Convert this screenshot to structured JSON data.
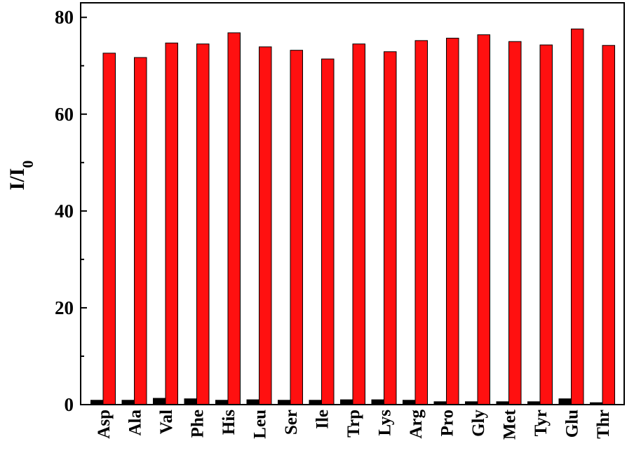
{
  "chart_data": {
    "type": "bar",
    "title": "",
    "xlabel": "",
    "ylabel": {
      "main": "I/I",
      "subscript": "0"
    },
    "ylim": [
      0,
      83
    ],
    "yticks": [
      0,
      20,
      40,
      60,
      80
    ],
    "categories": [
      "Asp",
      "Ala",
      "Val",
      "Phe",
      "His",
      "Leu",
      "Ser",
      "Ile",
      "Trp",
      "Lys",
      "Arg",
      "Pro",
      "Gly",
      "Met",
      "Tyr",
      "Glu",
      "Thr"
    ],
    "series": [
      {
        "color": "#000000",
        "values": [
          0.9,
          0.9,
          1.3,
          1.2,
          0.9,
          1.0,
          0.9,
          0.9,
          1.0,
          1.0,
          0.9,
          0.6,
          0.6,
          0.6,
          0.6,
          1.2,
          0.4
        ]
      },
      {
        "color": "#ff1010",
        "values": [
          72.6,
          71.7,
          74.7,
          74.5,
          76.8,
          73.9,
          73.2,
          71.4,
          74.5,
          72.9,
          75.2,
          75.7,
          76.4,
          75.0,
          74.3,
          77.6,
          74.2
        ]
      }
    ],
    "grid": false,
    "legend": "none"
  }
}
